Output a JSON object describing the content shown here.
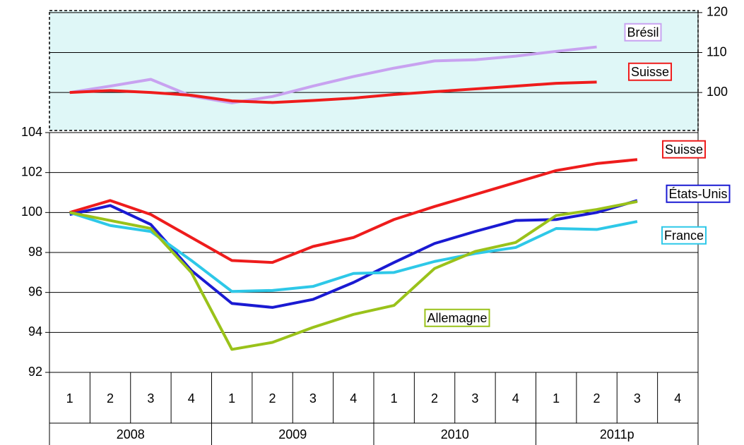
{
  "chart_data": [
    {
      "type": "line",
      "categories": [
        "1",
        "2",
        "3",
        "4",
        "1",
        "2",
        "3",
        "4",
        "1",
        "2",
        "3",
        "4",
        "1",
        "2",
        "3",
        "4"
      ],
      "category_groups": [
        "2008",
        "2009",
        "2010",
        "2011p"
      ],
      "ylim": [
        92,
        104
      ],
      "yticks": [
        92,
        94,
        96,
        98,
        100,
        102,
        104
      ],
      "grid": true,
      "yaxis_side": "left",
      "series": [
        {
          "name": "Suisse",
          "color": "#ee1c1c",
          "values": [
            100,
            100.6,
            99.9,
            98.75,
            97.6,
            97.5,
            98.3,
            98.75,
            99.65,
            100.3,
            100.9,
            101.5,
            102.1,
            102.45,
            102.65,
            null
          ]
        },
        {
          "name": "États-Unis",
          "color": "#1a1ad2",
          "values": [
            99.9,
            100.35,
            99.4,
            97.1,
            95.45,
            95.25,
            95.65,
            96.5,
            97.5,
            98.45,
            99.05,
            99.6,
            99.65,
            100,
            100.6,
            null
          ]
        },
        {
          "name": "France",
          "color": "#2ec8e8",
          "values": [
            100,
            99.35,
            99.05,
            97.6,
            96.05,
            96.1,
            96.3,
            96.95,
            97,
            97.55,
            97.95,
            98.25,
            99.2,
            99.15,
            99.55,
            null
          ]
        },
        {
          "name": "Allemagne",
          "color": "#9ac21a",
          "values": [
            100,
            99.6,
            99.2,
            97,
            93.15,
            93.5,
            94.25,
            94.9,
            95.35,
            97.2,
            98.05,
            98.5,
            99.85,
            100.15,
            100.55,
            null
          ]
        }
      ]
    },
    {
      "type": "line",
      "ylim": [
        90.5,
        120.5
      ],
      "yticks": [
        100,
        110,
        120
      ],
      "grid": true,
      "yaxis_side": "right",
      "series": [
        {
          "name": "Brésil",
          "color": "#c8a2f0",
          "values": [
            100,
            101.6,
            103.3,
            99.1,
            97.4,
            99,
            101.6,
            104,
            106.1,
            107.9,
            108.2,
            109.1,
            110.3,
            111.4,
            null,
            null
          ]
        },
        {
          "name": "Suisse",
          "color": "#ee1c1c",
          "values": [
            100,
            100.5,
            100,
            99.3,
            97.9,
            97.5,
            98,
            98.6,
            99.5,
            100.2,
            100.9,
            101.6,
            102.3,
            102.6,
            null,
            null
          ]
        }
      ]
    }
  ]
}
